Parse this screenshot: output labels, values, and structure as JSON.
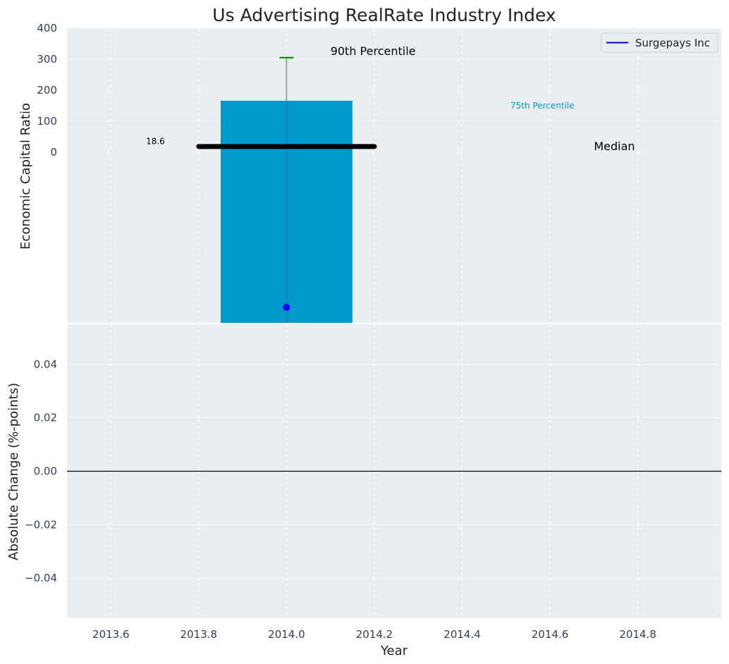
{
  "chart_data": [
    {
      "type": "bar",
      "title": "Us Advertising RealRate Industry Index",
      "xlabel": "",
      "ylabel": "Economic Capital Ratio",
      "xlim": [
        2013.5,
        2014.99
      ],
      "ylim": [
        -550,
        400
      ],
      "yticks": [
        "400",
        "300",
        "200",
        "100",
        "0"
      ],
      "ytick_values": [
        400,
        300,
        200,
        100,
        0
      ],
      "grid": true,
      "legend": {
        "placement": "top-right",
        "entries": [
          {
            "label": "Surgepays Inc",
            "color": "#0000cc"
          }
        ]
      },
      "bar": {
        "x": 2014.0,
        "width": 0.3,
        "bottom": -550,
        "top": 166,
        "color": "#0099cc"
      },
      "percentile_90": {
        "x": 2014.0,
        "value": 305,
        "color": "#008000"
      },
      "whisker": {
        "x": 2014.0,
        "from": -550,
        "to": 305,
        "color": "#888888"
      },
      "median": {
        "x_from": 2013.8,
        "x_to": 2014.2,
        "value": 18.6,
        "color": "#000000"
      },
      "company_point": {
        "series": "Surgepays Inc",
        "x": 2014.0,
        "value": -500,
        "color": "#0000ff"
      },
      "annotations": {
        "percentile_90_label": {
          "text": "90th Percentile",
          "x": 2014.1,
          "y": 325,
          "color": "#000000"
        },
        "percentile_75_label": {
          "text": "75th Percentile",
          "x": 2014.51,
          "y": 150,
          "color": "#0099cc"
        },
        "median_label": {
          "text": "Median",
          "x": 2014.7,
          "y": 18.6,
          "color": "#000000"
        },
        "median_value_label": {
          "text": "18.6",
          "x": 2013.68,
          "y": 35,
          "color": "#000000"
        }
      }
    },
    {
      "type": "line",
      "title": "",
      "xlabel": "Year",
      "ylabel": "Absolute Change (%-points)",
      "xlim": [
        2013.5,
        2014.99
      ],
      "ylim": [
        -0.055,
        0.055
      ],
      "xticks": [
        "2013.6",
        "2013.8",
        "2014.0",
        "2014.2",
        "2014.4",
        "2014.6",
        "2014.8"
      ],
      "xtick_values": [
        2013.6,
        2013.8,
        2014.0,
        2014.2,
        2014.4,
        2014.6,
        2014.8
      ],
      "yticks": [
        "0.04",
        "0.02",
        "0.00",
        "−0.02",
        "−0.04"
      ],
      "ytick_values": [
        0.04,
        0.02,
        0.0,
        -0.02,
        -0.04
      ],
      "grid": true,
      "reference_line": {
        "y": 0.0,
        "color": "#000000"
      }
    }
  ],
  "colors": {
    "panel_bg": "#eaeef0",
    "grid": "#ffffff",
    "tick_text": "#2e4055",
    "label_text": "#222222"
  }
}
